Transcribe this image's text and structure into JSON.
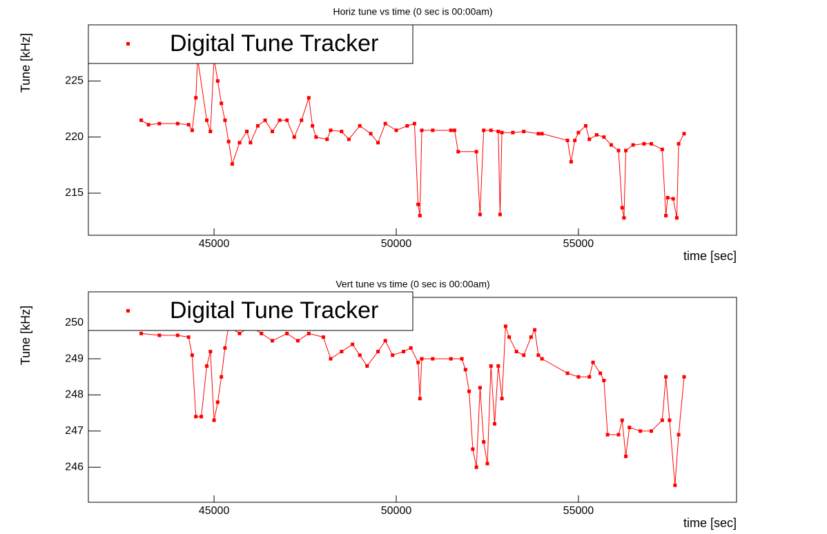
{
  "chart_data": [
    {
      "type": "line",
      "title": "Horiz tune vs time (0 sec is 00:00am)",
      "xlabel": "time [sec]",
      "ylabel": "Tune [kHz]",
      "x": [
        43000,
        43200,
        43500,
        44000,
        44300,
        44400,
        44500,
        44550,
        44800,
        44900,
        45000,
        45100,
        45200,
        45300,
        45400,
        45500,
        45700,
        45900,
        46000,
        46200,
        46400,
        46600,
        46800,
        47000,
        47200,
        47400,
        47600,
        47700,
        47800,
        48100,
        48200,
        48500,
        48700,
        49000,
        49300,
        49500,
        49700,
        50000,
        50300,
        50500,
        50600,
        50650,
        50700,
        51000,
        51500,
        51600,
        51700,
        52200,
        52300,
        52400,
        52600,
        52800,
        52850,
        52900,
        53200,
        53500,
        53900,
        54000,
        54700,
        54800,
        54900,
        55000,
        55200,
        55300,
        55500,
        55700,
        55900,
        56100,
        56200,
        56250,
        56300,
        56500,
        56800,
        57000,
        57300,
        57400,
        57450,
        57600,
        57700,
        57750,
        57900
      ],
      "series": [
        {
          "name": "Digital Tune Tracker",
          "color": "#ff0000",
          "values": [
            221.5,
            221.1,
            221.2,
            221.2,
            221.1,
            220.6,
            223.5,
            227,
            221.5,
            220.5,
            227,
            225,
            223,
            221.5,
            219.6,
            217.6,
            219.5,
            220.5,
            219.5,
            221,
            221.5,
            220.5,
            221.5,
            221.5,
            220,
            221.5,
            223.5,
            221,
            220,
            219.8,
            220.6,
            220.5,
            219.8,
            221,
            220.3,
            219.5,
            221.2,
            220.6,
            221,
            221.2,
            214,
            213,
            220.6,
            220.6,
            220.6,
            220.6,
            218.7,
            218.7,
            213.1,
            220.6,
            220.6,
            220.5,
            213.1,
            220.4,
            220.4,
            220.5,
            220.3,
            220.3,
            219.7,
            217.8,
            219.7,
            220.4,
            221,
            219.8,
            220.2,
            220,
            219.3,
            218.8,
            213.7,
            212.8,
            218.8,
            219.3,
            219.4,
            219.4,
            218.9,
            213,
            214.6,
            214.5,
            212.8,
            219.4,
            220.3
          ]
        }
      ],
      "xlim": [
        41550,
        59340
      ],
      "ylim": [
        211.25,
        230
      ],
      "xticks": [
        45000,
        50000,
        55000
      ],
      "yticks": [
        215,
        220,
        225
      ]
    },
    {
      "type": "line",
      "title": "Vert tune vs time (0 sec is 00:00am)",
      "xlabel": "time [sec]",
      "ylabel": "Tune [kHz]",
      "x": [
        43000,
        43500,
        44000,
        44300,
        44400,
        44500,
        44650,
        44800,
        44900,
        45000,
        45100,
        45200,
        45300,
        45400,
        45700,
        46000,
        46300,
        46600,
        47000,
        47300,
        47600,
        48000,
        48200,
        48500,
        48800,
        49000,
        49200,
        49500,
        49700,
        49900,
        50200,
        50400,
        50600,
        50650,
        50700,
        51000,
        51500,
        51800,
        51900,
        52000,
        52100,
        52200,
        52300,
        52400,
        52500,
        52600,
        52700,
        52800,
        52900,
        53000,
        53100,
        53300,
        53500,
        53700,
        53800,
        53900,
        54000,
        54700,
        55000,
        55300,
        55400,
        55600,
        55700,
        55800,
        56100,
        56200,
        56300,
        56400,
        56700,
        57000,
        57300,
        57400,
        57500,
        57650,
        57750,
        57900
      ],
      "series": [
        {
          "name": "Digital Tune Tracker",
          "color": "#ff0000",
          "values": [
            249.7,
            249.65,
            249.65,
            249.6,
            249.1,
            247.4,
            247.4,
            248.8,
            249.2,
            247.3,
            247.8,
            248.5,
            249.3,
            249.9,
            249.7,
            249.9,
            249.7,
            249.5,
            249.7,
            249.5,
            249.7,
            249.6,
            249.0,
            249.2,
            249.4,
            249.1,
            248.8,
            249.2,
            249.5,
            249.1,
            249.2,
            249.3,
            248.9,
            247.9,
            249.0,
            249.0,
            249.0,
            249.0,
            248.7,
            248.1,
            246.5,
            246.0,
            248.2,
            246.7,
            246.1,
            248.8,
            247.2,
            248.8,
            247.9,
            249.9,
            249.6,
            249.2,
            249.1,
            249.6,
            249.8,
            249.1,
            249.0,
            248.6,
            248.5,
            248.5,
            248.9,
            248.6,
            248.4,
            246.9,
            246.9,
            247.3,
            246.3,
            247.1,
            247.0,
            247.0,
            247.3,
            248.5,
            247.3,
            245.5,
            246.9,
            248.5
          ]
        }
      ],
      "xlim": [
        41550,
        59340
      ],
      "ylim": [
        245.03,
        250.7
      ],
      "xticks": [
        45000,
        50000,
        55000
      ],
      "yticks": [
        246,
        247,
        248,
        249,
        250
      ]
    }
  ]
}
